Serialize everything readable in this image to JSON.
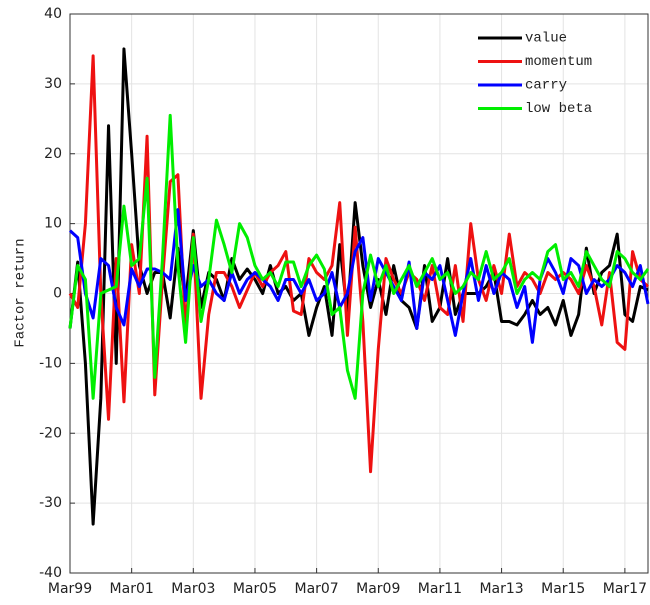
{
  "chart_data": {
    "type": "line",
    "y_label": "Factor return",
    "categories": [
      "Mar99",
      null,
      null,
      null,
      null,
      null,
      null,
      null,
      "Mar01",
      null,
      null,
      null,
      null,
      null,
      null,
      null,
      "Mar03",
      null,
      null,
      null,
      null,
      null,
      null,
      null,
      "Mar05",
      null,
      null,
      null,
      null,
      null,
      null,
      null,
      "Mar07",
      null,
      null,
      null,
      null,
      null,
      null,
      null,
      "Mar09",
      null,
      null,
      null,
      null,
      null,
      null,
      null,
      "Mar11",
      null,
      null,
      null,
      null,
      null,
      null,
      null,
      "Mar13",
      null,
      null,
      null,
      null,
      null,
      null,
      null,
      "Mar15",
      null,
      null,
      null,
      null,
      null,
      null,
      null,
      "Mar17",
      null,
      null,
      null
    ],
    "series": [
      {
        "name": "value",
        "color": "#000000",
        "values": [
          -5,
          4.5,
          -10,
          -33,
          -15,
          24,
          -10,
          35,
          20,
          4,
          0,
          3,
          3,
          -3.5,
          6.5,
          -1,
          9,
          -2,
          3,
          2,
          -1,
          5,
          2,
          3.5,
          2,
          0,
          4,
          0,
          1,
          -1,
          0,
          -6,
          -2,
          1,
          -6,
          7,
          -3,
          13,
          4,
          -2,
          2,
          -3,
          4,
          -1,
          -2,
          -5,
          4,
          -4,
          -2,
          5,
          -3,
          0,
          0,
          0,
          1,
          3,
          -4,
          -4,
          -4.5,
          -3,
          -1,
          -3,
          -2,
          -4.5,
          -1,
          -6,
          -3,
          6.5,
          0,
          3,
          4,
          8.5,
          -3,
          -4,
          1,
          0.5
        ]
      },
      {
        "name": "momentum",
        "color": "#ee1111",
        "values": [
          0,
          -2,
          10,
          34,
          0,
          -18,
          5,
          -15.5,
          7,
          0,
          22.5,
          -14.5,
          2,
          16,
          17,
          -5,
          8.5,
          -15,
          -3,
          3,
          3,
          1,
          -2,
          0.5,
          3,
          1,
          3,
          4,
          6,
          -2.5,
          -3,
          5,
          3,
          2,
          4,
          13,
          -6,
          9.5,
          -4,
          -25.5,
          -8,
          5,
          2,
          0,
          3,
          2,
          -1,
          4,
          -2,
          -3,
          4,
          -4,
          10,
          2,
          -1,
          4,
          0,
          8.5,
          1,
          3,
          2,
          0,
          3,
          2,
          3,
          2,
          0,
          4,
          1,
          -4.5,
          3,
          -7,
          -8,
          6,
          2,
          1
        ]
      },
      {
        "name": "carry",
        "color": "#0000ff",
        "values": [
          9,
          8,
          0,
          -3.5,
          5,
          4,
          -2,
          -4.5,
          3.5,
          1,
          3.5,
          3.5,
          3,
          2,
          12,
          -1,
          4,
          1,
          2,
          0,
          -1,
          3,
          0,
          2,
          3,
          2,
          1,
          -1,
          2,
          2,
          0,
          2,
          -1,
          0,
          3,
          -2,
          0,
          6,
          8,
          -1,
          5,
          3,
          1,
          -1,
          4.5,
          -5,
          3,
          2,
          4,
          -1,
          -6,
          0,
          5,
          -1,
          4,
          0,
          3,
          2,
          -2,
          1,
          -7,
          2,
          5,
          3,
          0,
          5,
          4,
          0,
          2,
          1,
          2,
          4,
          3,
          1,
          4,
          -1.5
        ]
      },
      {
        "name": "low beta",
        "color": "#00ee00",
        "values": [
          -5,
          4,
          2,
          -15,
          0,
          0.5,
          1,
          12.5,
          4,
          5,
          16.5,
          -12,
          5,
          25.5,
          4,
          -7,
          8,
          -4,
          2,
          10.5,
          7,
          3,
          10,
          8,
          4,
          2,
          3,
          1,
          4.5,
          4.5,
          1,
          4,
          5.5,
          3.5,
          -3,
          -2,
          -11,
          -15,
          0,
          5.5,
          1,
          4,
          0,
          2,
          4,
          1,
          3,
          5,
          2,
          3,
          0,
          1,
          3,
          2,
          6,
          2,
          3,
          5,
          0,
          2,
          3,
          2,
          6,
          7,
          2,
          3,
          1,
          6,
          4,
          2,
          1,
          6,
          5,
          3,
          2,
          3.5
        ]
      }
    ],
    "ylim": [
      -40,
      40
    ],
    "yticks": [
      -40,
      -30,
      -20,
      -10,
      0,
      10,
      20,
      30,
      40
    ],
    "grid": true,
    "legend": "upper right"
  }
}
